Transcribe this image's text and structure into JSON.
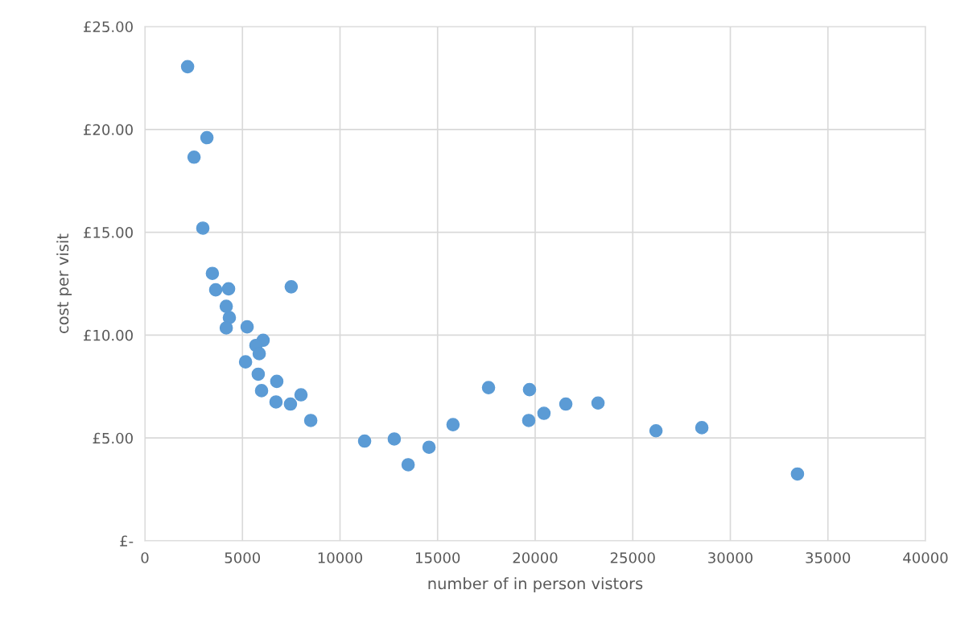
{
  "chart_data": {
    "type": "scatter",
    "xlabel": "number of in person vistors",
    "ylabel": "cost per visit",
    "series": [
      {
        "color": "#5b9bd5",
        "x": [
          2190,
          3180,
          2520,
          2970,
          3460,
          3630,
          4290,
          7500,
          4170,
          4330,
          4170,
          5240,
          6060,
          5690,
          5860,
          5160,
          5810,
          6760,
          5980,
          6720,
          8000,
          7460,
          8500,
          11260,
          12780,
          13490,
          14560,
          15790,
          17610,
          19710,
          19670,
          20450,
          21570,
          23220,
          26190,
          28540,
          33440
        ],
        "values": [
          23.05,
          19.6,
          18.65,
          15.2,
          13.0,
          12.2,
          12.25,
          12.35,
          11.4,
          10.85,
          10.35,
          10.4,
          9.75,
          9.5,
          9.1,
          8.7,
          8.1,
          7.75,
          7.3,
          6.75,
          7.1,
          6.65,
          5.85,
          4.85,
          4.95,
          3.7,
          4.55,
          5.65,
          7.45,
          7.35,
          5.85,
          6.2,
          6.65,
          6.7,
          5.35,
          5.5,
          3.25
        ]
      }
    ],
    "xlim": [
      0,
      40000
    ],
    "xticks": [
      0,
      5000,
      10000,
      15000,
      20000,
      25000,
      30000,
      35000,
      40000
    ],
    "ylim": [
      0,
      25
    ],
    "yticks": [
      {
        "value": 0,
        "label": "£-"
      },
      {
        "value": 5,
        "label": "£5.00"
      },
      {
        "value": 10,
        "label": "£10.00"
      },
      {
        "value": 15,
        "label": "£15.00"
      },
      {
        "value": 20,
        "label": "£20.00"
      },
      {
        "value": 25,
        "label": "£25.00"
      }
    ],
    "grid": true,
    "marker": "circle"
  }
}
